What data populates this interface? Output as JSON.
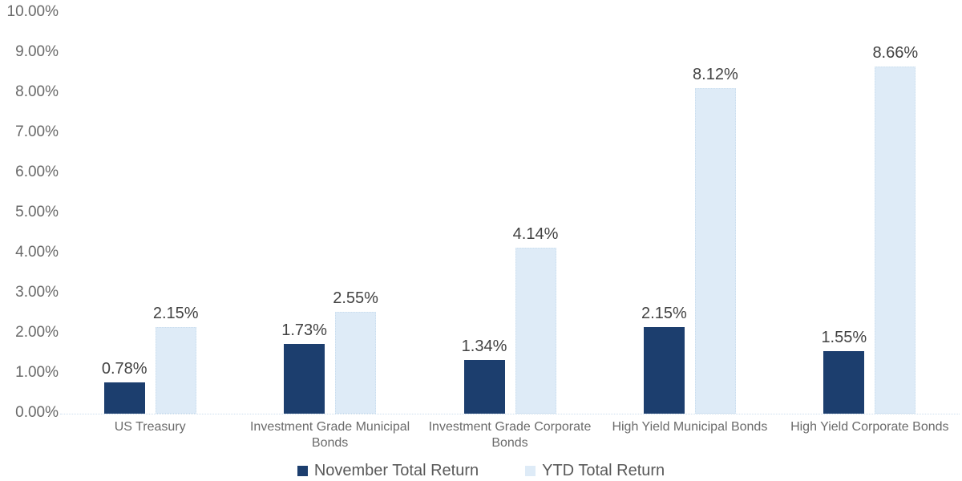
{
  "chart_data": {
    "type": "bar",
    "title": "",
    "xlabel": "",
    "ylabel": "",
    "categories": [
      "US Treasury",
      "Investment Grade Municipal Bonds",
      "Investment Grade Corporate Bonds",
      "High Yield Municipal Bonds",
      "High Yield Corporate Bonds"
    ],
    "series": [
      {
        "name": "November Total Return",
        "color": "#1C3E6E",
        "values": [
          0.78,
          1.73,
          1.34,
          2.15,
          1.55
        ],
        "labels": [
          "0.78%",
          "1.73%",
          "1.34%",
          "2.15%",
          "1.55%"
        ]
      },
      {
        "name": "YTD Total Return",
        "color": "#DEEBF7",
        "values": [
          2.15,
          2.55,
          4.14,
          8.12,
          8.66
        ],
        "labels": [
          "2.15%",
          "2.55%",
          "4.14%",
          "8.12%",
          "8.66%"
        ]
      }
    ],
    "y_ticks": [
      "0.00%",
      "1.00%",
      "2.00%",
      "3.00%",
      "4.00%",
      "5.00%",
      "6.00%",
      "7.00%",
      "8.00%",
      "9.00%",
      "10.00%"
    ],
    "ylim": [
      0,
      10
    ],
    "grid": false,
    "legend_position": "bottom"
  },
  "colors": {
    "background": "#ffffff",
    "axis_text": "#696969",
    "data_label_text": "#424242",
    "legend_text": "#595959",
    "baseline": "#ccdeed",
    "november_bar": "#1C3E6E",
    "ytd_bar": "#DEEBF7"
  }
}
